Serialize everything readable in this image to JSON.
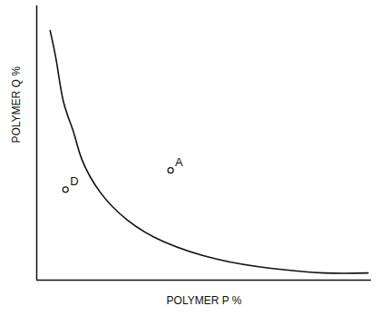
{
  "chart_data": {
    "type": "line",
    "x_label": "POLYMER P %",
    "y_label": "POLYMER Q %",
    "x": [
      4,
      6,
      8,
      11,
      13.5,
      19,
      27,
      38,
      54,
      70,
      86,
      99
    ],
    "values": [
      91,
      79,
      65,
      54,
      44,
      32,
      22,
      14,
      7.6,
      4.3,
      2.6,
      2.6
    ],
    "color": "#111111",
    "xlim": [
      0,
      100
    ],
    "ylim": [
      0,
      100
    ],
    "tick_labels": false,
    "grid": false,
    "points": [
      {
        "label": "A",
        "x": 40,
        "y": 40
      },
      {
        "label": "D",
        "x": 8.6,
        "y": 33
      }
    ],
    "marker": "circle"
  }
}
